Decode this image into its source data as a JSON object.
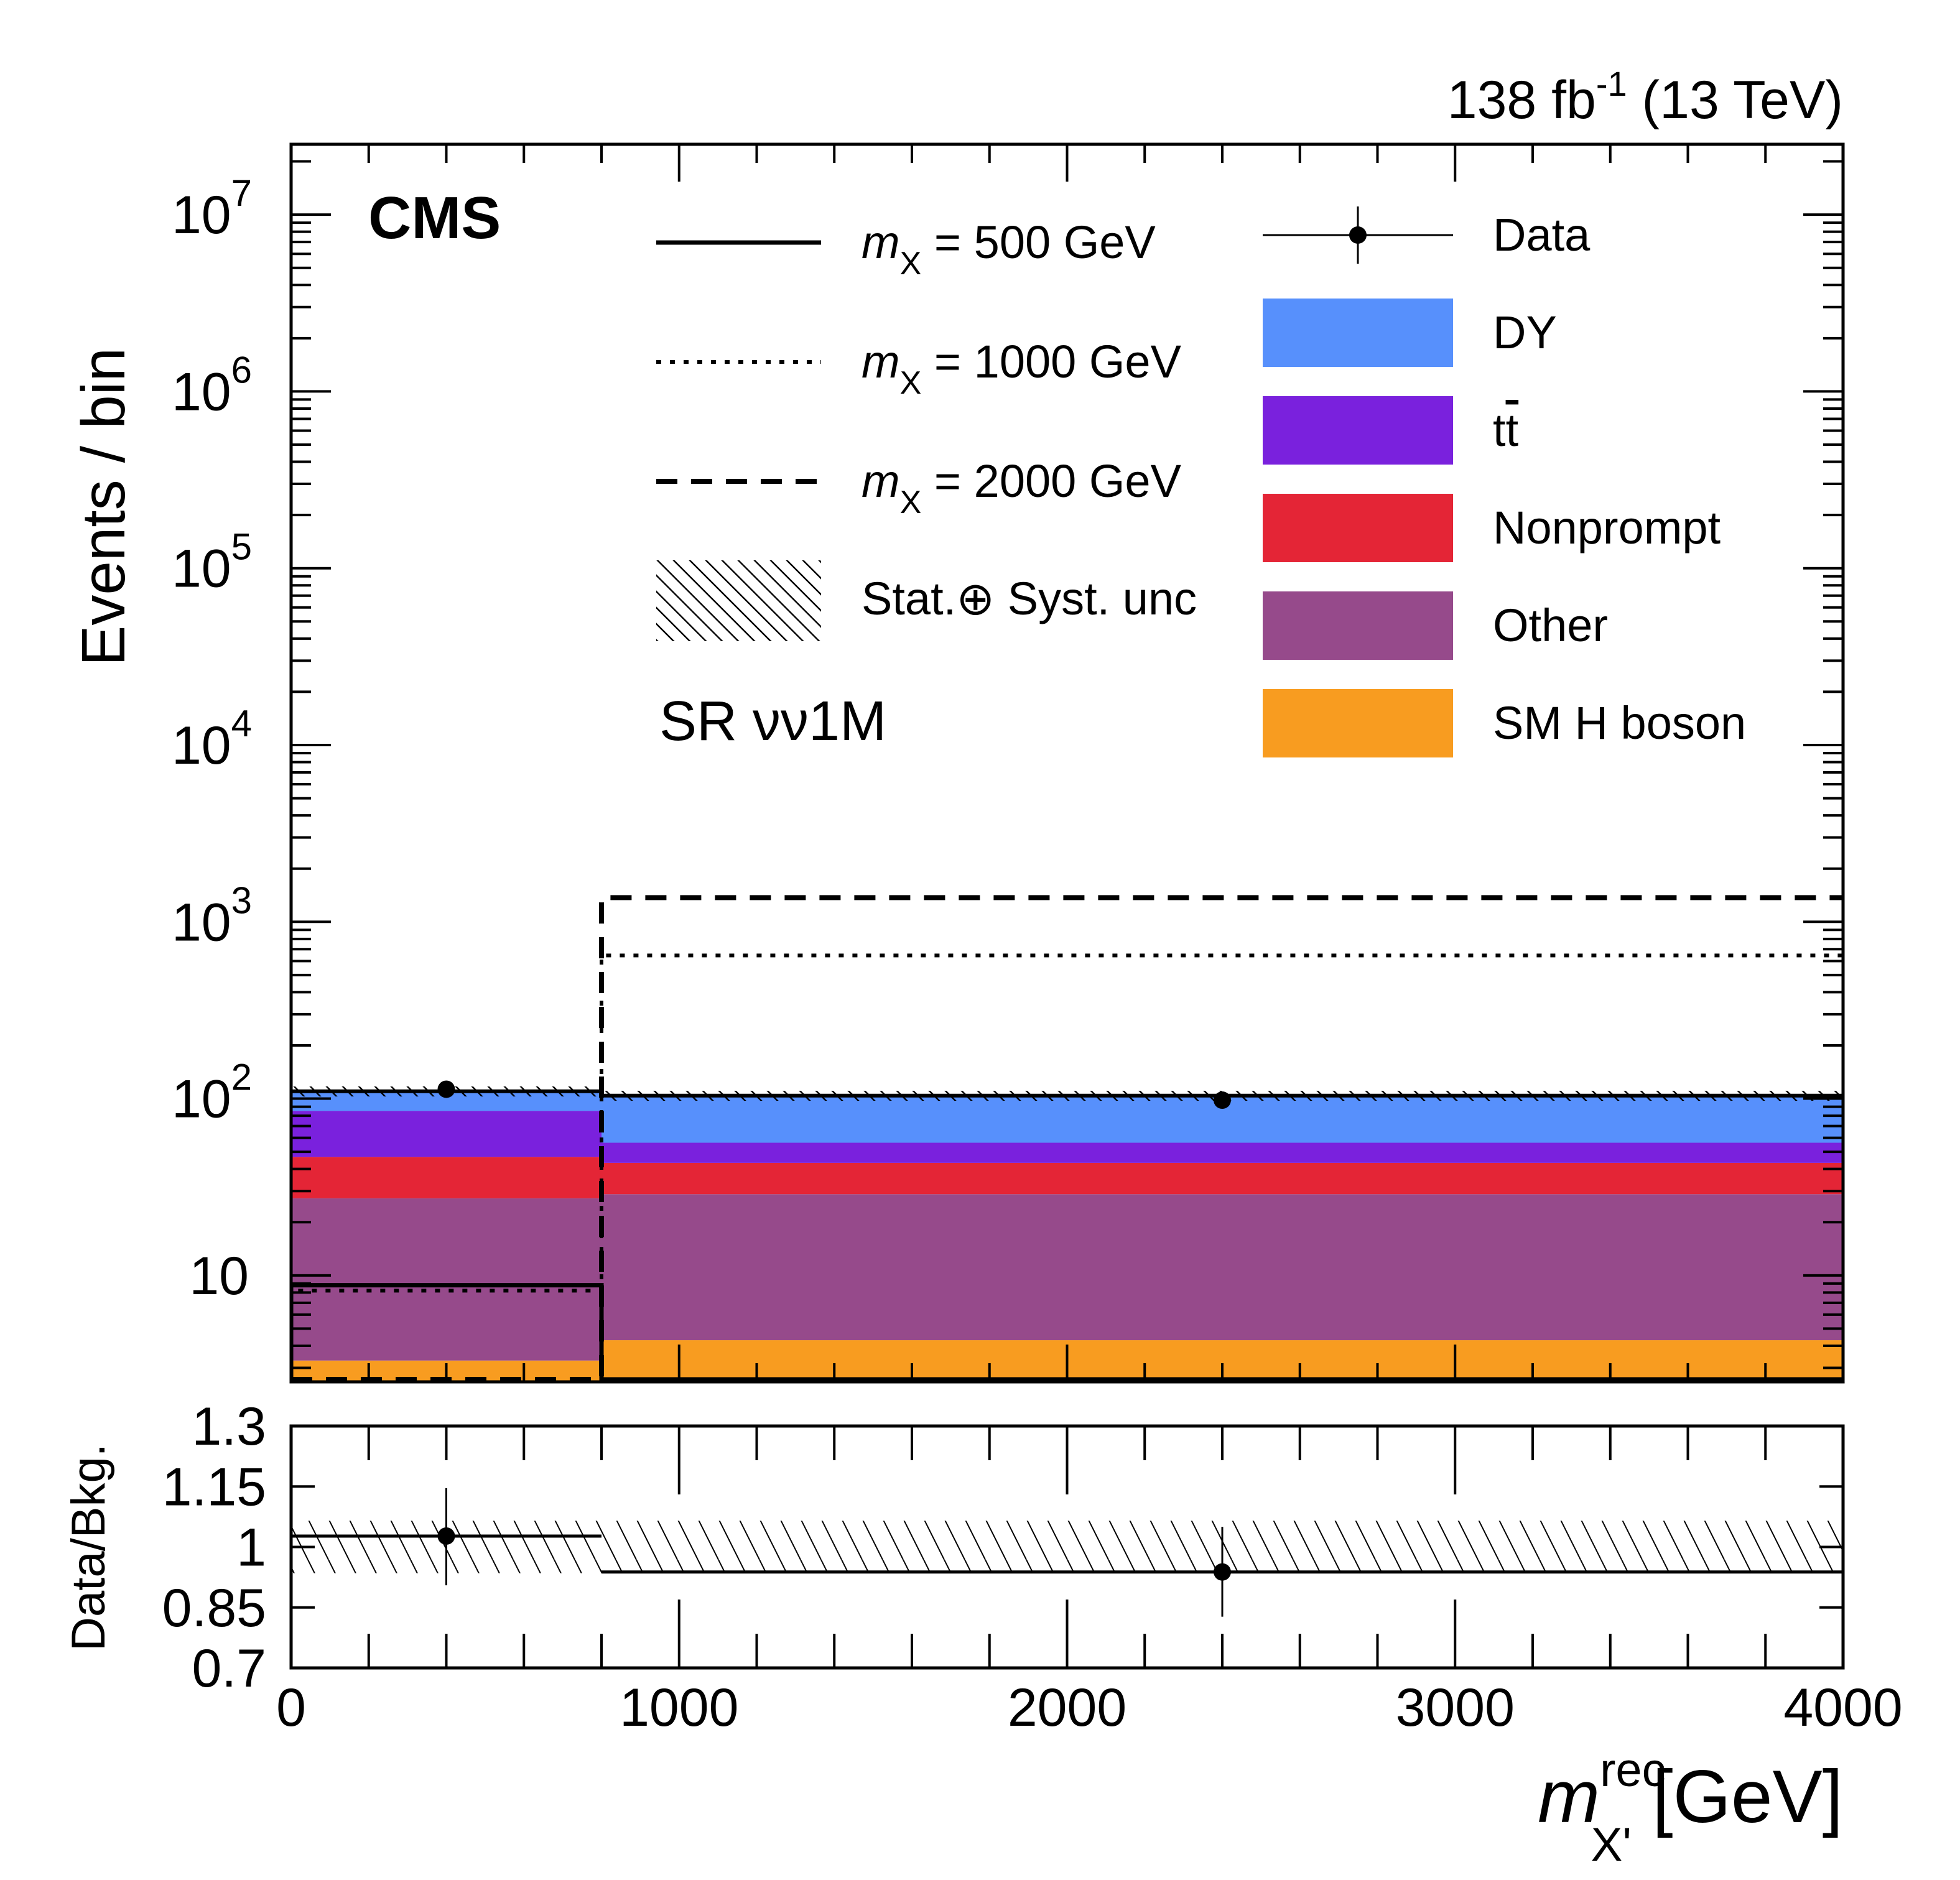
{
  "chart_data": {
    "type": "bar",
    "subtype": "stacked-histogram-with-ratio",
    "experiment_label": "CMS",
    "lumi_label": {
      "value": "138 fb",
      "sup": "-1",
      "energy": " (13 TeV)"
    },
    "region_label": "SR νν1M",
    "xlabel": {
      "main": "m",
      "sup": "rec",
      "sub": "X'",
      "unit": " [GeV]"
    },
    "ylabel": "Events / bin",
    "ratio_ylabel": "Data/Bkg.",
    "xlim": [
      0,
      4000
    ],
    "ylim": [
      2.5,
      25000000
    ],
    "yscale": "log",
    "ratio_ylim": [
      0.7,
      1.3
    ],
    "x_ticks": [
      0,
      1000,
      2000,
      3000,
      4000
    ],
    "x_tick_labels": [
      "0",
      "1000",
      "2000",
      "3000",
      "4000"
    ],
    "y_ticks": [
      {
        "value": 10,
        "label": "10",
        "sup": ""
      },
      {
        "value": 100,
        "label": "10",
        "sup": "2"
      },
      {
        "value": 1000,
        "label": "10",
        "sup": "3"
      },
      {
        "value": 10000,
        "label": "10",
        "sup": "4"
      },
      {
        "value": 100000,
        "label": "10",
        "sup": "5"
      },
      {
        "value": 1000000,
        "label": "10",
        "sup": "6"
      },
      {
        "value": 10000000,
        "label": "10",
        "sup": "7"
      }
    ],
    "ratio_ticks": [
      {
        "value": 1.3,
        "label": "1.3"
      },
      {
        "value": 1.15,
        "label": "1.15"
      },
      {
        "value": 1.0,
        "label": "1"
      },
      {
        "value": 0.85,
        "label": "0.85"
      },
      {
        "value": 0.7,
        "label": "0.7"
      }
    ],
    "bin_edges": [
      0,
      800,
      4000
    ],
    "backgrounds": [
      {
        "name": "SM H boson",
        "color": "#f89c20",
        "values": [
          3.3,
          4.3
        ]
      },
      {
        "name": "Other",
        "color": "#964a8b",
        "values": [
          24.0,
          24.5
        ]
      },
      {
        "name": "Nonprompt",
        "color": "#e42536",
        "values": [
          19.5,
          14.5
        ]
      },
      {
        "name": "tt̄",
        "label_main": "t",
        "label_bar": "t",
        "color": "#7a21dd",
        "values": [
          38.5,
          13.0
        ]
      },
      {
        "name": "DY",
        "color": "#5790fc",
        "values": [
          24.7,
          48.0
        ]
      }
    ],
    "total_background": [
      110,
      104
    ],
    "signals": [
      {
        "name": "m_X = 500 GeV",
        "style": "solid",
        "values": [
          8.8,
          2.5
        ]
      },
      {
        "name": "m_X = 1000 GeV",
        "style": "dotted",
        "values": [
          8.2,
          645
        ]
      },
      {
        "name": "m_X = 2000 GeV",
        "style": "dashed",
        "values": [
          2.5,
          1370
        ]
      }
    ],
    "data": {
      "x": [
        400,
        2400
      ],
      "y": [
        113,
        98
      ],
      "yerr": [
        11,
        10
      ],
      "xerr": [
        400,
        1600
      ]
    },
    "ratio": {
      "values": [
        1.027,
        0.938
      ],
      "err_up": [
        0.119,
        0.112
      ],
      "err_down": [
        0.122,
        0.111
      ]
    },
    "uncertainty_band": {
      "name": "Stat.⊕ Syst. unc",
      "rel_up": [
        0.065,
        0.065
      ],
      "rel_down": [
        0.065,
        0.065
      ]
    },
    "legend_left": [
      {
        "kind": "line",
        "style": "solid",
        "main": "m",
        "sub": "X",
        "rest": " = 500 GeV"
      },
      {
        "kind": "line",
        "style": "dotted",
        "main": "m",
        "sub": "X",
        "rest": " = 1000 GeV"
      },
      {
        "kind": "line",
        "style": "dashed",
        "main": "m",
        "sub": "X",
        "rest": " = 2000 GeV"
      },
      {
        "kind": "hatch",
        "text": "Stat.⊕ Syst. unc"
      }
    ],
    "legend_right": [
      {
        "kind": "data",
        "text": "Data"
      },
      {
        "kind": "fill",
        "text": "DY",
        "color": "#5790fc"
      },
      {
        "kind": "fill",
        "text": "tt̄",
        "color": "#7a21dd",
        "ttbar": true
      },
      {
        "kind": "fill",
        "text": "Nonprompt",
        "color": "#e42536"
      },
      {
        "kind": "fill",
        "text": "Other",
        "color": "#964a8b"
      },
      {
        "kind": "fill",
        "text": "SM H boson",
        "color": "#f89c20"
      }
    ],
    "legend_placement": "top-center-right",
    "grid": false
  }
}
